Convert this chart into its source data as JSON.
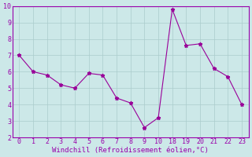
{
  "y": [
    7.0,
    6.0,
    5.8,
    5.2,
    5.0,
    5.9,
    5.8,
    4.4,
    4.1,
    2.6,
    3.2,
    9.8,
    7.6,
    7.7,
    6.2,
    5.7,
    4.0
  ],
  "x_indices": [
    0,
    1,
    2,
    3,
    4,
    5,
    6,
    7,
    8,
    9,
    10,
    11,
    12,
    13,
    14,
    15,
    16
  ],
  "line_color": "#990099",
  "marker": "*",
  "bg_color": "#cce8e8",
  "grid_color": "#aacccc",
  "xlabel": "Windchill (Refroidissement éolien,°C)",
  "ylim": [
    2,
    10
  ],
  "yticks": [
    2,
    3,
    4,
    5,
    6,
    7,
    8,
    9,
    10
  ],
  "tick_labels": [
    "0",
    "1",
    "2",
    "3",
    "4",
    "5",
    "6",
    "7",
    "8",
    "9",
    "10",
    "18",
    "19",
    "20",
    "21",
    "22",
    "23"
  ],
  "border_color": "#9900aa",
  "label_color": "#9900aa",
  "tick_color": "#9900aa",
  "markersize": 3.5,
  "linewidth": 0.8,
  "tick_fontsize": 6.0,
  "xlabel_fontsize": 6.5
}
